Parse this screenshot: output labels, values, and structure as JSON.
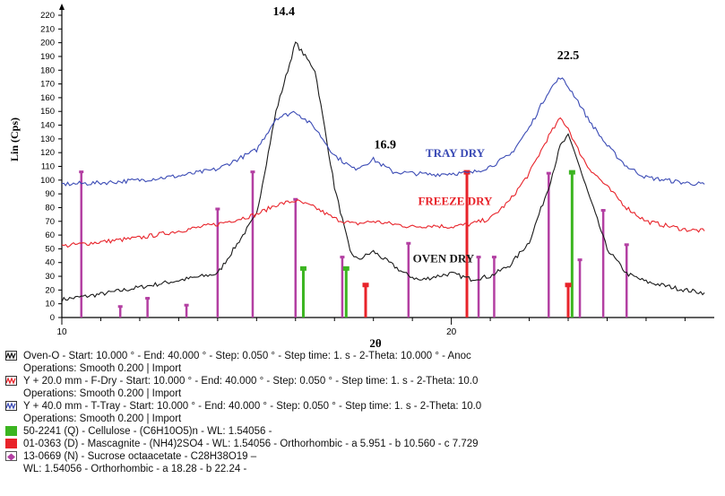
{
  "chart_data": {
    "type": "line",
    "title": "",
    "xlabel": "2θ",
    "ylabel": "Lin (Cps)",
    "xlim": [
      10,
      40
    ],
    "ylim": [
      0,
      220
    ],
    "x_ticks": [
      {
        "x": 10,
        "label": "10"
      },
      {
        "x": 20,
        "label": "20"
      }
    ],
    "y_ticks": [
      "0",
      "10",
      "20",
      "30",
      "40",
      "50",
      "60",
      "70",
      "80",
      "90",
      "100",
      "110",
      "120",
      "130",
      "140",
      "150",
      "160",
      "170",
      "180",
      "190",
      "200",
      "210",
      "220"
    ],
    "colors": {
      "oven": "#1a1a1a",
      "freeze": "#e8232a",
      "tray": "#3b4bb5",
      "cellulose": "#3cb521",
      "mascagnite": "#e8232a",
      "sucrose": "#b33fa2"
    },
    "series": [
      {
        "name": "OVEN DRY",
        "key": "oven",
        "x": [
          10,
          11,
          12,
          13,
          14,
          15,
          15.5,
          16,
          16.5,
          17,
          17.4,
          17.6,
          17.8,
          18,
          18.4,
          18.8,
          19.2,
          19.6,
          20,
          20.5,
          21,
          21.5,
          22,
          22.5,
          22.8,
          23,
          23.2,
          23.4,
          23.7,
          24,
          24.5,
          25,
          26,
          26.5
        ],
        "values": [
          13,
          17,
          22,
          27,
          32,
          75,
          150,
          200,
          180,
          95,
          48,
          42,
          45,
          48,
          40,
          32,
          27,
          30,
          32,
          28,
          30,
          38,
          55,
          95,
          125,
          132,
          118,
          100,
          75,
          50,
          32,
          26,
          20,
          18
        ]
      },
      {
        "name": "FREEZE DRY",
        "key": "freeze",
        "x": [
          10,
          11,
          12,
          13,
          14,
          15,
          15.5,
          16,
          16.5,
          17,
          17.5,
          18,
          18.5,
          19,
          19.5,
          20,
          20.5,
          21,
          21.5,
          22,
          22.5,
          22.8,
          23,
          23.2,
          23.5,
          24,
          24.5,
          25,
          26,
          26.5
        ],
        "values": [
          52,
          55,
          58,
          63,
          68,
          75,
          82,
          85,
          80,
          72,
          68,
          70,
          68,
          66,
          67,
          66,
          68,
          72,
          85,
          105,
          132,
          145,
          138,
          125,
          110,
          95,
          80,
          70,
          64,
          63
        ]
      },
      {
        "name": "TRAY DRY",
        "key": "tray",
        "x": [
          10,
          11,
          12,
          13,
          14,
          15,
          15.5,
          16,
          16.5,
          17,
          17.5,
          17.8,
          18,
          18.5,
          19,
          19.5,
          20,
          20.5,
          21,
          21.5,
          22,
          22.5,
          22.8,
          23,
          23.2,
          23.5,
          24,
          24.5,
          25,
          26,
          26.5
        ],
        "values": [
          97,
          98,
          100,
          103,
          108,
          122,
          145,
          150,
          138,
          118,
          108,
          112,
          115,
          106,
          105,
          104,
          105,
          105,
          110,
          118,
          138,
          165,
          175,
          168,
          160,
          145,
          125,
          110,
          102,
          98,
          97
        ]
      }
    ],
    "reference_bars": [
      {
        "phase": "sucrose",
        "x": [
          10.5,
          11.5,
          12.2,
          13.2,
          14,
          14.9,
          16,
          17.2,
          18.9,
          20.7,
          21.1,
          22.5,
          23.3,
          23.9,
          24.5
        ],
        "values": [
          106,
          8,
          14,
          9,
          79,
          106,
          86,
          44,
          54,
          44,
          44,
          105,
          42,
          78,
          53
        ]
      },
      {
        "phase": "cellulose",
        "x": [
          16.2,
          17.3,
          23.1
        ],
        "values": [
          36,
          36,
          106
        ]
      },
      {
        "phase": "mascagnite",
        "x": [
          17.8,
          20.4,
          23.0
        ],
        "values": [
          24,
          106,
          24
        ]
      }
    ],
    "annotations": [
      {
        "x": 15.7,
        "y": 220,
        "text": "14.4"
      },
      {
        "x": 18.3,
        "y": 123,
        "text": "16.9"
      },
      {
        "x": 23.0,
        "y": 188,
        "text": "22.5"
      },
      {
        "x": 20.1,
        "y": 117,
        "text": "TRAY DRY",
        "series": "tray"
      },
      {
        "x": 20.1,
        "y": 82,
        "text": "FREEZE DRY",
        "series": "freeze"
      },
      {
        "x": 19.8,
        "y": 40,
        "text": "OVEN DRY",
        "series": "oven"
      }
    ]
  },
  "legend": [
    {
      "icon": "wave",
      "color": "#1a1a1a",
      "text": "Oven-O - Start: 10.000 ° - End: 40.000 ° - Step: 0.050 ° - Step time: 1. s - 2-Theta: 10.000 ° - Anoc",
      "sub": "Operations: Smooth 0.200 | Import"
    },
    {
      "icon": "wave",
      "color": "#e8232a",
      "text": "Y + 20.0 mm - F-Dry - Start: 10.000 ° - End: 40.000 ° - Step: 0.050 ° - Step time: 1. s - 2-Theta: 10.0",
      "sub": "Operations: Smooth 0.200 | Import"
    },
    {
      "icon": "wave",
      "color": "#3b4bb5",
      "text": "Y + 40.0 mm - T-Tray - Start: 10.000 ° - End: 40.000 ° - Step: 0.050 ° - Step time: 1. s - 2-Theta: 10.0",
      "sub": "Operations: Smooth 0.200 | Import"
    },
    {
      "icon": "square",
      "color": "#3cb521",
      "text": "50-2241 (Q) - Cellulose - (C6H10O5)n - WL: 1.54056 -",
      "sub": ""
    },
    {
      "icon": "square",
      "color": "#e8232a",
      "text": "01-0363 (D) - Mascagnite - (NH4)2SO4 - WL: 1.54056 - Orthorhombic - a 5.951 - b 10.560 - c 7.729",
      "sub": ""
    },
    {
      "icon": "diamond",
      "color": "#b33fa2",
      "text": "13-0669 (N) - Sucrose octaacetate - C28H38O19 –",
      "sub": "WL: 1.54056 - Orthorhombic - a 18.28 - b 22.24 -"
    }
  ]
}
